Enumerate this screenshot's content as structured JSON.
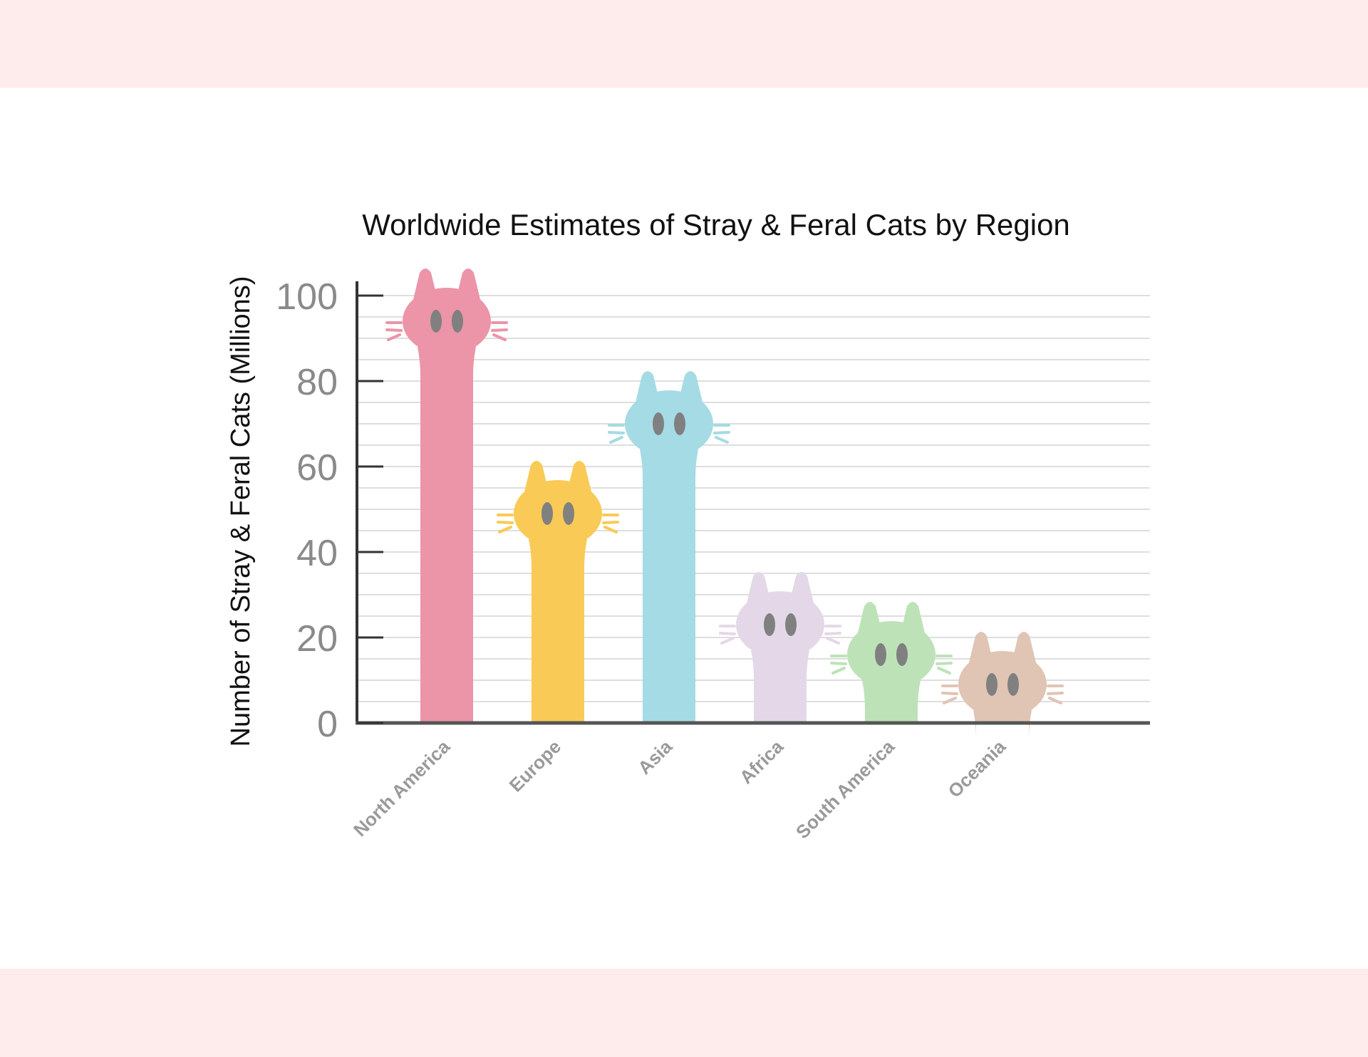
{
  "chart_data": {
    "type": "bar",
    "title": "Worldwide Estimates of Stray & Feral Cats by Region",
    "xlabel": "",
    "ylabel": "Number of Stray & Feral Cats (Millions)",
    "categories": [
      "North America",
      "Europe",
      "Asia",
      "Africa",
      "South America",
      "Oceania"
    ],
    "values": [
      94,
      49,
      70,
      23,
      16,
      9
    ],
    "colors": [
      "#ec94a8",
      "#f9ca55",
      "#a5dbe4",
      "#e4d8e8",
      "#bde2b8",
      "#e0c4b4"
    ],
    "ylim": [
      0,
      100
    ],
    "yticks": [
      0,
      20,
      40,
      60,
      80,
      100
    ],
    "grid": true,
    "legend": "none",
    "bar_style": "cat-silhouette"
  },
  "icons": {
    "bar_shape": "cat-icon"
  },
  "colors": {
    "background": "#ffffff",
    "band": "#fdeceb",
    "axis": "#333333",
    "gridline": "#dedede",
    "tick_text": "#8a8a8a",
    "category_text": "#9a9a9a",
    "eye": "#808080"
  }
}
